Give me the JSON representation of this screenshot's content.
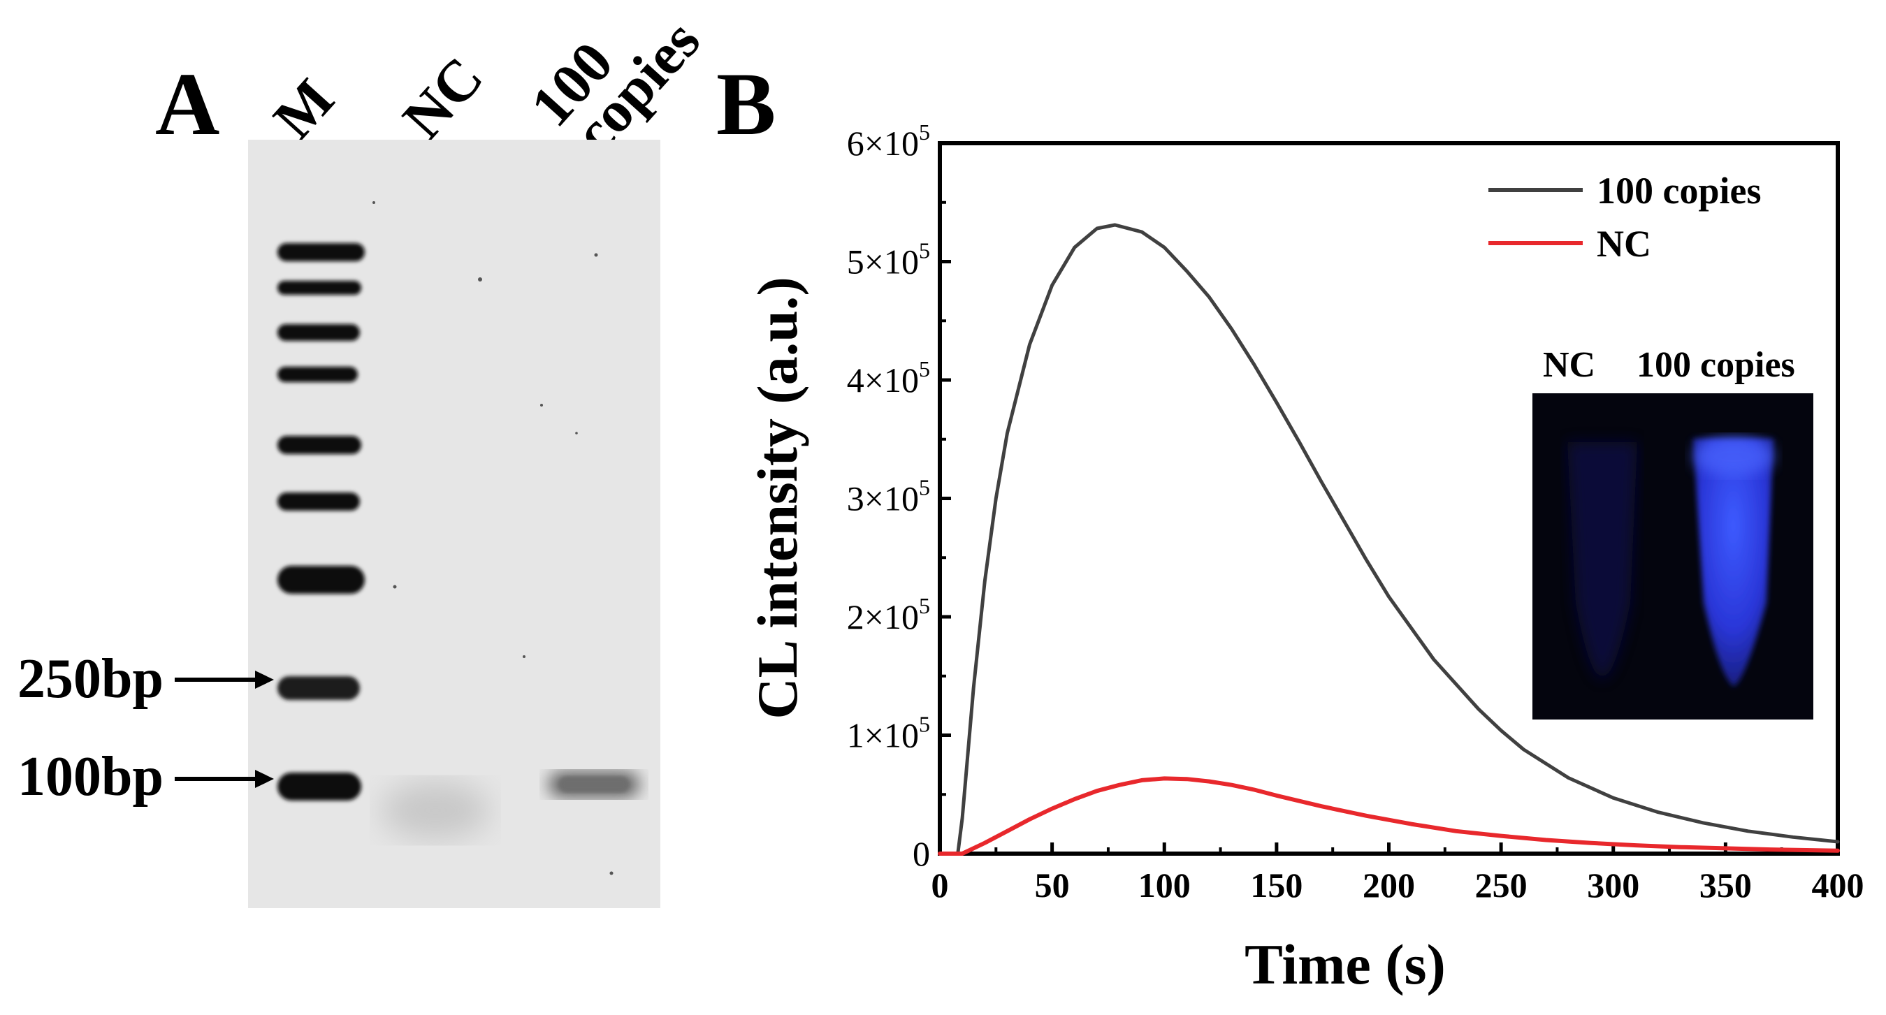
{
  "panel_a": {
    "label": "A",
    "lanes": [
      "M",
      "NC",
      "100",
      "copies"
    ],
    "markers": [
      "250bp",
      "100bp"
    ]
  },
  "panel_b": {
    "label": "B",
    "inset": {
      "labels": [
        "NC",
        "100 copies"
      ]
    }
  },
  "chart_data": {
    "type": "line",
    "xlabel": "Time (s)",
    "ylabel": "CL intensity (a.u.)",
    "xlim": [
      0,
      400
    ],
    "ylim": [
      0,
      600000
    ],
    "xticks": [
      "0",
      "50",
      "100",
      "150",
      "200",
      "250",
      "300",
      "350",
      "400"
    ],
    "yticks": [
      {
        "mant": "0",
        "exp": ""
      },
      {
        "mant": "1×10",
        "exp": "5"
      },
      {
        "mant": "2×10",
        "exp": "5"
      },
      {
        "mant": "3×10",
        "exp": "5"
      },
      {
        "mant": "4×10",
        "exp": "5"
      },
      {
        "mant": "5×10",
        "exp": "5"
      },
      {
        "mant": "6×10",
        "exp": "5"
      }
    ],
    "legend_position": "top-right",
    "grid": false,
    "series": [
      {
        "name": "100 copies",
        "color": "#404040",
        "x": [
          0,
          8,
          10,
          15,
          20,
          25,
          30,
          40,
          50,
          60,
          70,
          78,
          90,
          100,
          110,
          120,
          130,
          140,
          150,
          160,
          170,
          180,
          190,
          200,
          220,
          240,
          250,
          260,
          280,
          300,
          320,
          340,
          360,
          380,
          400
        ],
        "y": [
          0,
          0,
          30000,
          140000,
          230000,
          300000,
          355000,
          430000,
          480000,
          512000,
          528000,
          531000,
          525000,
          512000,
          492000,
          470000,
          443000,
          413000,
          381000,
          348000,
          314000,
          281000,
          248000,
          217000,
          164000,
          122000,
          104000,
          88000,
          64000,
          47000,
          35000,
          26000,
          19000,
          14000,
          10000
        ]
      },
      {
        "name": "NC",
        "color": "#e8282c",
        "x": [
          0,
          10,
          20,
          30,
          40,
          50,
          60,
          70,
          80,
          90,
          100,
          110,
          120,
          130,
          140,
          150,
          170,
          190,
          210,
          230,
          250,
          270,
          290,
          310,
          330,
          350,
          370,
          400
        ],
        "y": [
          0,
          0,
          9000,
          19000,
          29000,
          38000,
          46000,
          53000,
          58000,
          62000,
          63500,
          63000,
          61000,
          58000,
          54000,
          49000,
          40000,
          32000,
          25000,
          19000,
          15000,
          11500,
          9000,
          7000,
          5500,
          4500,
          3500,
          2500
        ]
      }
    ]
  }
}
